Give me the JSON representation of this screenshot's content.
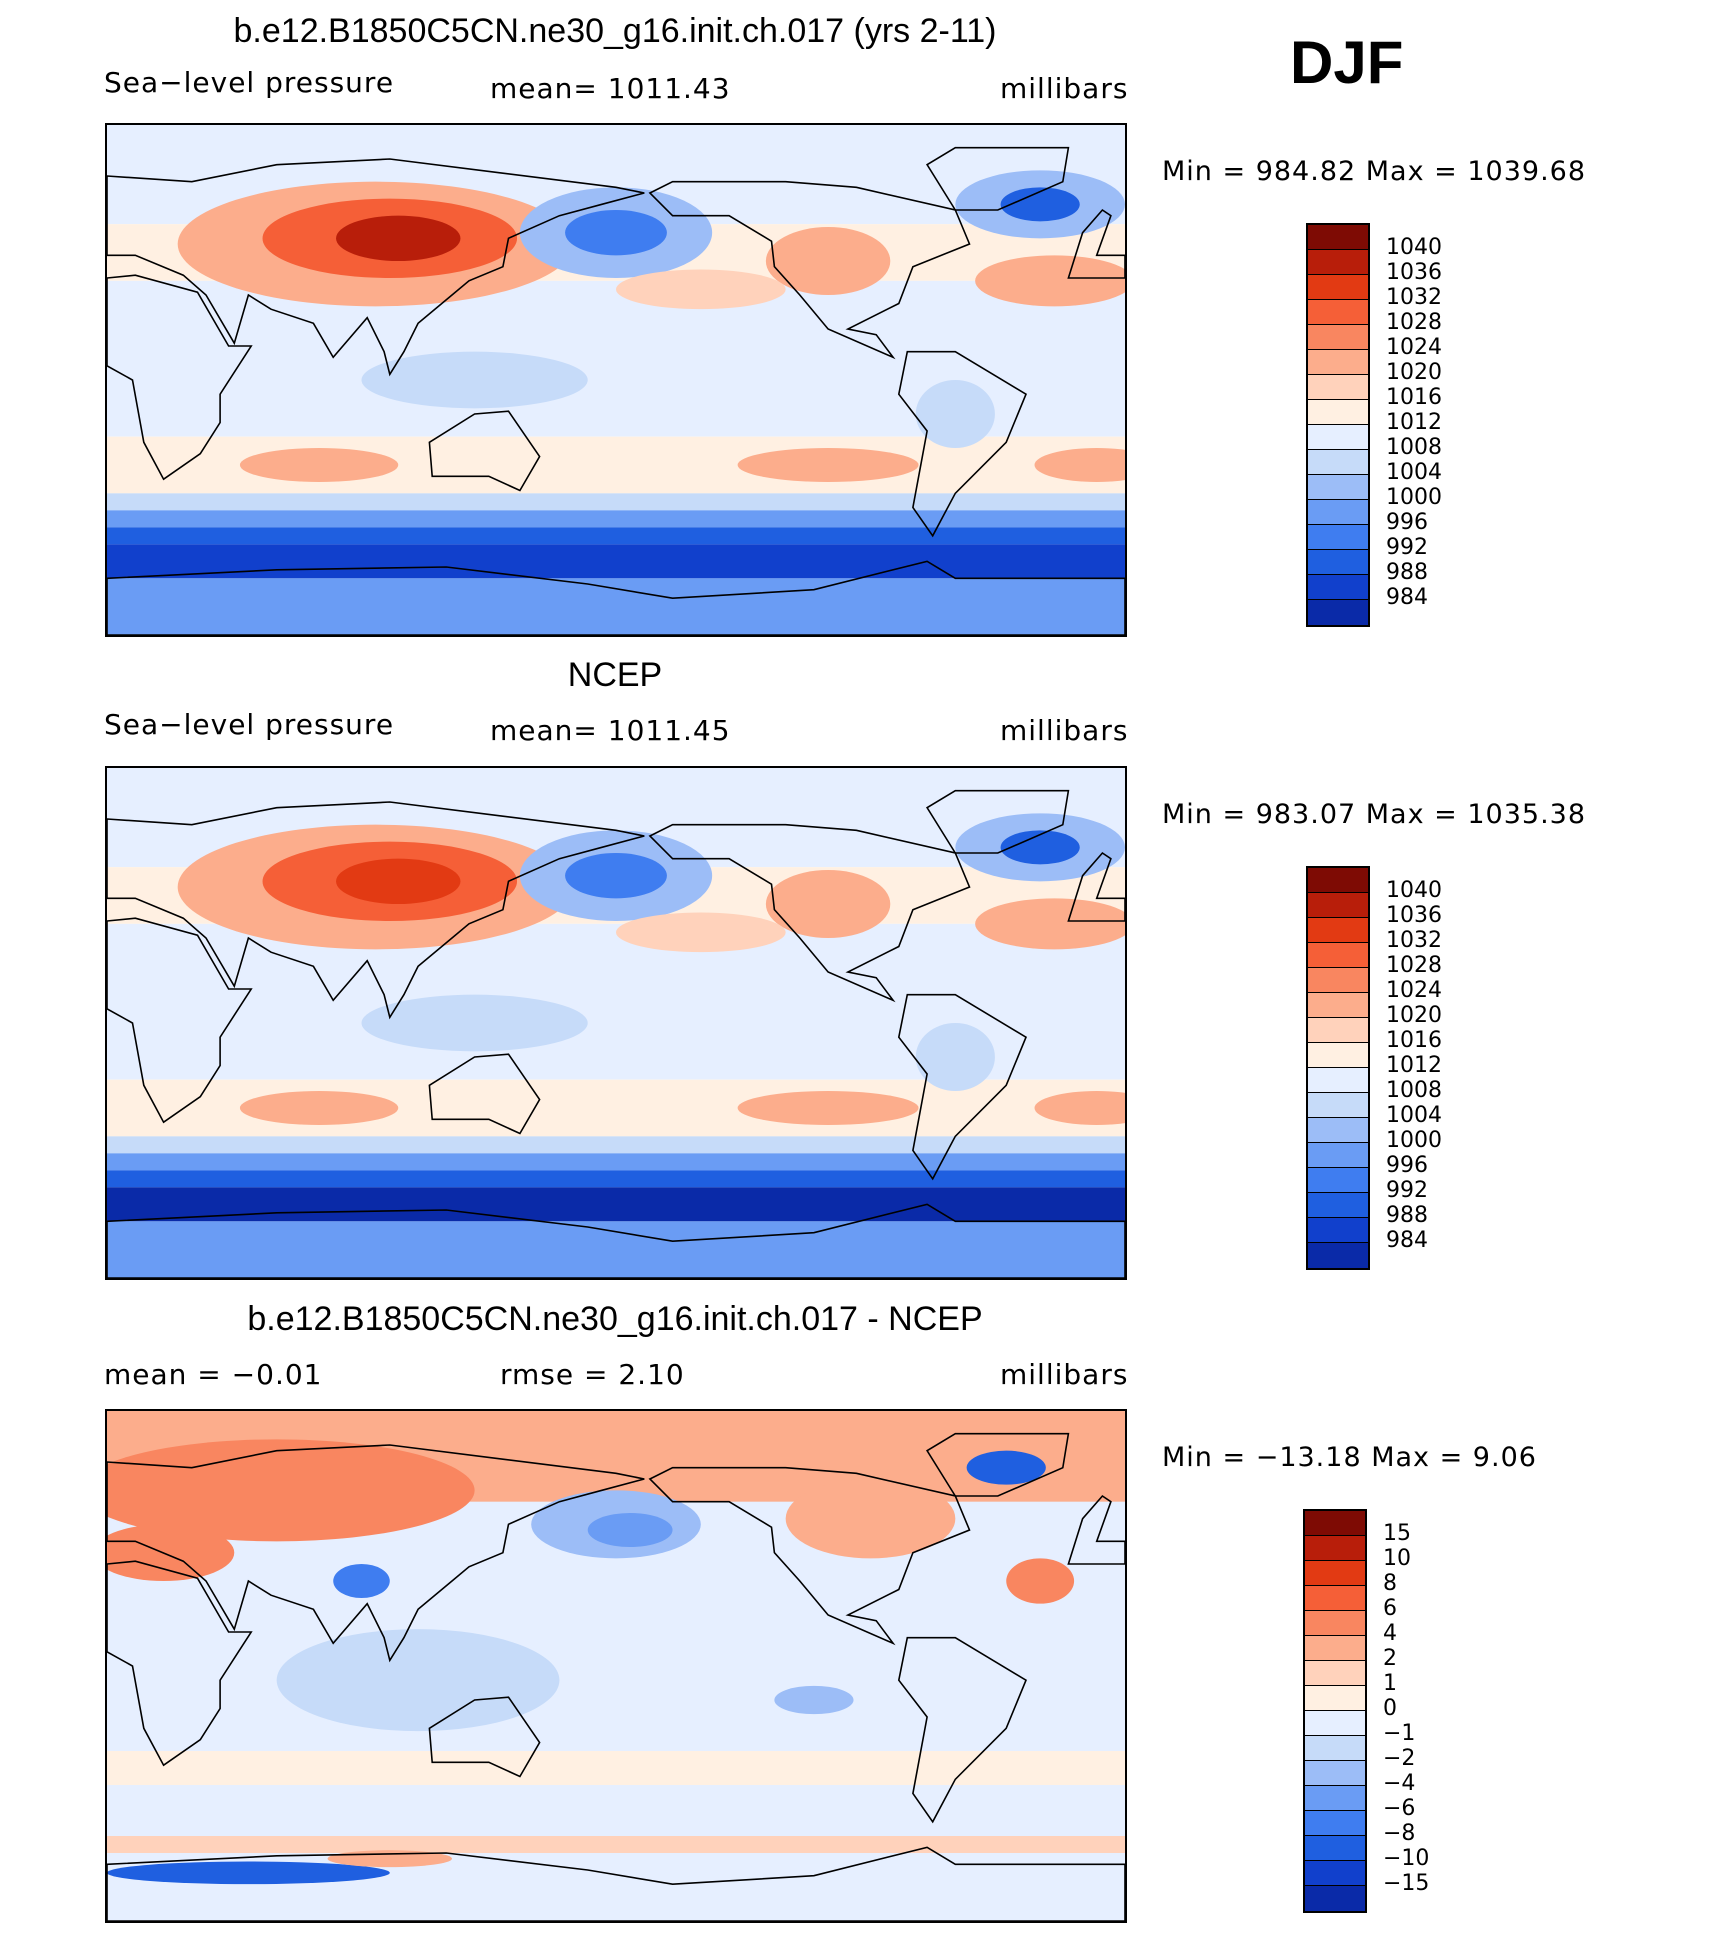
{
  "season": "DJF",
  "palette": [
    "#08087a",
    "#0a2aa8",
    "#1140cc",
    "#1f5fe0",
    "#3f7df0",
    "#6a9cf4",
    "#9cbdf7",
    "#c6dbf9",
    "#e6efff",
    "#fff0e2",
    "#ffd2bb",
    "#fcad8c",
    "#f98660",
    "#f55f37",
    "#e23a13",
    "#b81e0a",
    "#7e0b04"
  ],
  "panels": [
    {
      "title": "b.e12.B1850C5CN.ne30_g16.init.ch.017 (yrs 2-11)",
      "left_label": "Sea−level pressure",
      "center_label": "mean=  1011.43",
      "right_label": "millibars",
      "stats": "Min  =  984.82  Max  =  1039.68",
      "legend_levels": [
        "1040",
        "1036",
        "1032",
        "1028",
        "1024",
        "1020",
        "1016",
        "1012",
        "1008",
        "1004",
        "1000",
        "996",
        "992",
        "988",
        "984"
      ],
      "map_variant": "model"
    },
    {
      "title": "NCEP",
      "left_label": "Sea−level pressure",
      "center_label": "mean=  1011.45",
      "right_label": "millibars",
      "stats": "Min  =  983.07  Max  =  1035.38",
      "legend_levels": [
        "1040",
        "1036",
        "1032",
        "1028",
        "1024",
        "1020",
        "1016",
        "1012",
        "1008",
        "1004",
        "1000",
        "996",
        "992",
        "988",
        "984"
      ],
      "map_variant": "obs"
    },
    {
      "title": "b.e12.B1850C5CN.ne30_g16.init.ch.017 - NCEP",
      "left_label": "mean  =    −0.01",
      "center_label": "rmse  =     2.10",
      "right_label": "millibars",
      "stats": "Min  =  −13.18  Max  =      9.06",
      "legend_levels": [
        "15",
        "10",
        "8",
        "6",
        "4",
        "2",
        "1",
        "0",
        "−1",
        "−2",
        "−4",
        "−6",
        "−8",
        "−10",
        "−15"
      ],
      "map_variant": "diff"
    }
  ]
}
